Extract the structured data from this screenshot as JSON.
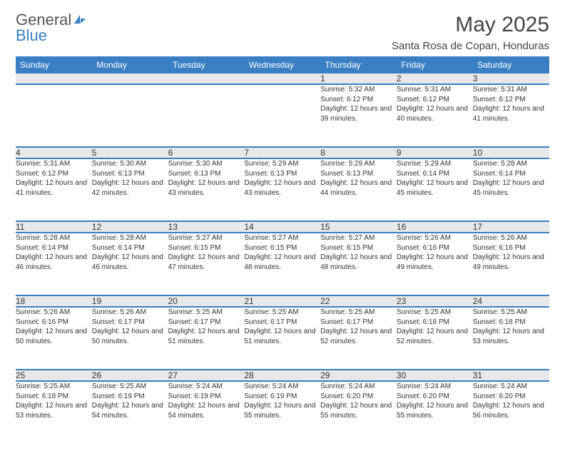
{
  "brand": {
    "word1": "General",
    "word2": "Blue"
  },
  "title": "May 2025",
  "location": "Santa Rosa de Copan, Honduras",
  "colors": {
    "accent": "#3a7fc4",
    "header_bg": "#3a7fc4",
    "daynum_bg": "#e8e8e8",
    "text": "#333333"
  },
  "weekdays": [
    "Sunday",
    "Monday",
    "Tuesday",
    "Wednesday",
    "Thursday",
    "Friday",
    "Saturday"
  ],
  "weeks": [
    [
      null,
      null,
      null,
      null,
      {
        "n": "1",
        "sr": "5:32 AM",
        "ss": "6:12 PM",
        "dl": "12 hours and 39 minutes."
      },
      {
        "n": "2",
        "sr": "5:31 AM",
        "ss": "6:12 PM",
        "dl": "12 hours and 40 minutes."
      },
      {
        "n": "3",
        "sr": "5:31 AM",
        "ss": "6:12 PM",
        "dl": "12 hours and 41 minutes."
      }
    ],
    [
      {
        "n": "4",
        "sr": "5:31 AM",
        "ss": "6:12 PM",
        "dl": "12 hours and 41 minutes."
      },
      {
        "n": "5",
        "sr": "5:30 AM",
        "ss": "6:13 PM",
        "dl": "12 hours and 42 minutes."
      },
      {
        "n": "6",
        "sr": "5:30 AM",
        "ss": "6:13 PM",
        "dl": "12 hours and 43 minutes."
      },
      {
        "n": "7",
        "sr": "5:29 AM",
        "ss": "6:13 PM",
        "dl": "12 hours and 43 minutes."
      },
      {
        "n": "8",
        "sr": "5:29 AM",
        "ss": "6:13 PM",
        "dl": "12 hours and 44 minutes."
      },
      {
        "n": "9",
        "sr": "5:29 AM",
        "ss": "6:14 PM",
        "dl": "12 hours and 45 minutes."
      },
      {
        "n": "10",
        "sr": "5:28 AM",
        "ss": "6:14 PM",
        "dl": "12 hours and 45 minutes."
      }
    ],
    [
      {
        "n": "11",
        "sr": "5:28 AM",
        "ss": "6:14 PM",
        "dl": "12 hours and 46 minutes."
      },
      {
        "n": "12",
        "sr": "5:28 AM",
        "ss": "6:14 PM",
        "dl": "12 hours and 46 minutes."
      },
      {
        "n": "13",
        "sr": "5:27 AM",
        "ss": "6:15 PM",
        "dl": "12 hours and 47 minutes."
      },
      {
        "n": "14",
        "sr": "5:27 AM",
        "ss": "6:15 PM",
        "dl": "12 hours and 48 minutes."
      },
      {
        "n": "15",
        "sr": "5:27 AM",
        "ss": "6:15 PM",
        "dl": "12 hours and 48 minutes."
      },
      {
        "n": "16",
        "sr": "5:26 AM",
        "ss": "6:16 PM",
        "dl": "12 hours and 49 minutes."
      },
      {
        "n": "17",
        "sr": "5:26 AM",
        "ss": "6:16 PM",
        "dl": "12 hours and 49 minutes."
      }
    ],
    [
      {
        "n": "18",
        "sr": "5:26 AM",
        "ss": "6:16 PM",
        "dl": "12 hours and 50 minutes."
      },
      {
        "n": "19",
        "sr": "5:26 AM",
        "ss": "6:17 PM",
        "dl": "12 hours and 50 minutes."
      },
      {
        "n": "20",
        "sr": "5:25 AM",
        "ss": "6:17 PM",
        "dl": "12 hours and 51 minutes."
      },
      {
        "n": "21",
        "sr": "5:25 AM",
        "ss": "6:17 PM",
        "dl": "12 hours and 51 minutes."
      },
      {
        "n": "22",
        "sr": "5:25 AM",
        "ss": "6:17 PM",
        "dl": "12 hours and 52 minutes."
      },
      {
        "n": "23",
        "sr": "5:25 AM",
        "ss": "6:18 PM",
        "dl": "12 hours and 52 minutes."
      },
      {
        "n": "24",
        "sr": "5:25 AM",
        "ss": "6:18 PM",
        "dl": "12 hours and 53 minutes."
      }
    ],
    [
      {
        "n": "25",
        "sr": "5:25 AM",
        "ss": "6:18 PM",
        "dl": "12 hours and 53 minutes."
      },
      {
        "n": "26",
        "sr": "5:25 AM",
        "ss": "6:19 PM",
        "dl": "12 hours and 54 minutes."
      },
      {
        "n": "27",
        "sr": "5:24 AM",
        "ss": "6:19 PM",
        "dl": "12 hours and 54 minutes."
      },
      {
        "n": "28",
        "sr": "5:24 AM",
        "ss": "6:19 PM",
        "dl": "12 hours and 55 minutes."
      },
      {
        "n": "29",
        "sr": "5:24 AM",
        "ss": "6:20 PM",
        "dl": "12 hours and 55 minutes."
      },
      {
        "n": "30",
        "sr": "5:24 AM",
        "ss": "6:20 PM",
        "dl": "12 hours and 55 minutes."
      },
      {
        "n": "31",
        "sr": "5:24 AM",
        "ss": "6:20 PM",
        "dl": "12 hours and 56 minutes."
      }
    ]
  ],
  "labels": {
    "sunrise": "Sunrise: ",
    "sunset": "Sunset: ",
    "daylight": "Daylight: "
  }
}
